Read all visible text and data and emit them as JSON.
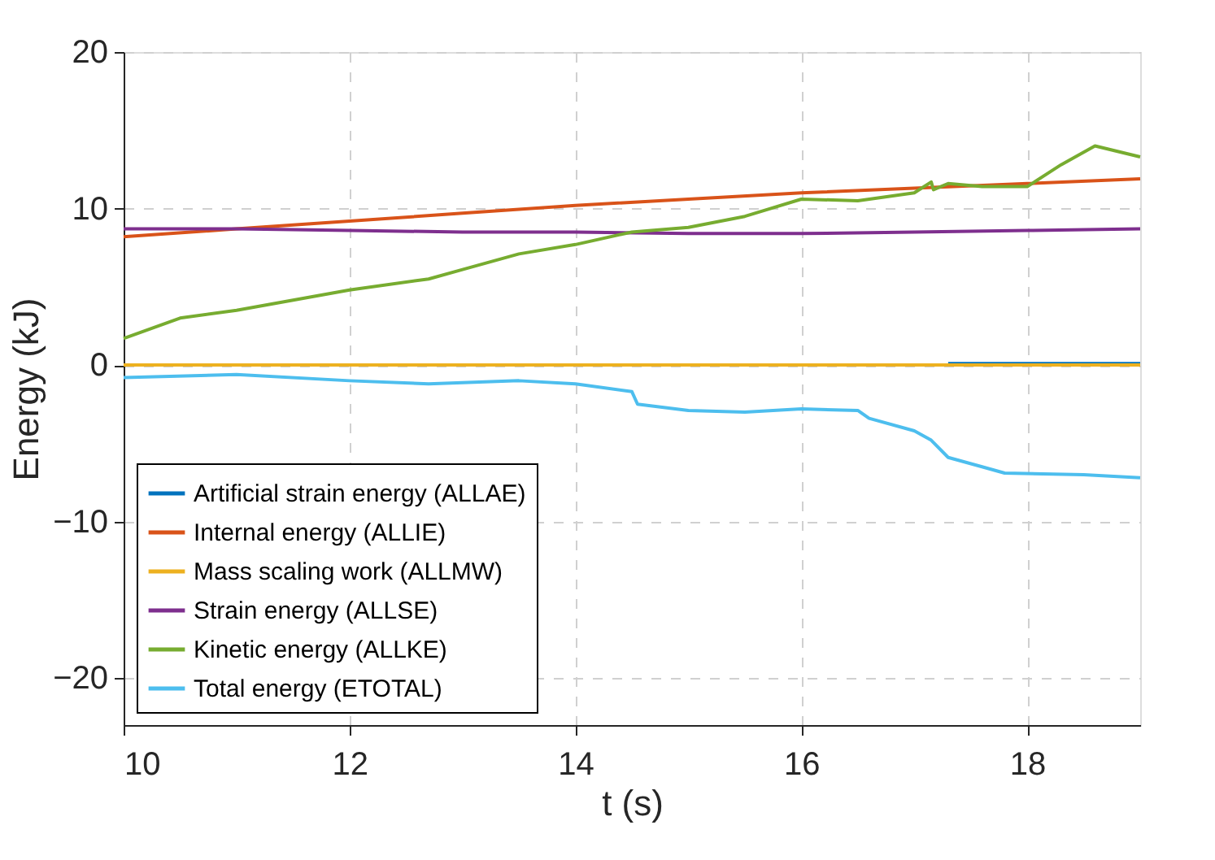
{
  "chart_data": {
    "type": "line",
    "xlabel": "t (s)",
    "ylabel": "Energy (kJ)",
    "xlim": [
      10,
      19
    ],
    "ylim": [
      -23,
      20
    ],
    "xticks": [
      10,
      12,
      14,
      16,
      18
    ],
    "yticks": [
      -20,
      -10,
      0,
      10,
      20
    ],
    "grid": true,
    "legend": "bottom left",
    "line_style": "solid",
    "marker": "none",
    "series": [
      {
        "name": "Artificial strain energy (ALLAE)",
        "color": "#0072bd",
        "x": [
          17.3,
          18,
          19
        ],
        "values": [
          0.1,
          0.1,
          0.1
        ]
      },
      {
        "name": "Internal energy (ALLIE)",
        "color": "#d95319",
        "x": [
          10,
          11,
          12,
          13,
          14,
          15,
          16,
          17,
          18,
          19
        ],
        "values": [
          8.2,
          8.7,
          9.2,
          9.7,
          10.2,
          10.6,
          11.0,
          11.3,
          11.6,
          11.9
        ]
      },
      {
        "name": "Mass scaling work (ALLMW)",
        "color": "#edb120",
        "x": [
          10,
          19
        ],
        "values": [
          0,
          0
        ]
      },
      {
        "name": "Strain energy (ALLSE)",
        "color": "#7e2f8e",
        "x": [
          10,
          11,
          12,
          13,
          14,
          15,
          16,
          17,
          18,
          19
        ],
        "values": [
          8.7,
          8.7,
          8.6,
          8.5,
          8.5,
          8.4,
          8.4,
          8.5,
          8.6,
          8.7
        ]
      },
      {
        "name": "Kinetic energy (ALLKE)",
        "color": "#77ac30",
        "x": [
          10,
          10.5,
          11,
          12,
          12.7,
          13,
          13.5,
          14,
          14.5,
          15,
          15.5,
          16,
          16.5,
          17,
          17.15,
          17.17,
          17.3,
          17.6,
          18,
          18.3,
          18.6,
          19
        ],
        "values": [
          1.7,
          3.0,
          3.5,
          4.8,
          5.5,
          6.1,
          7.1,
          7.7,
          8.5,
          8.8,
          9.5,
          10.6,
          10.5,
          11.0,
          11.7,
          11.2,
          11.6,
          11.4,
          11.4,
          12.8,
          14.0,
          13.3
        ]
      },
      {
        "name": "Total energy (ETOTAL)",
        "color": "#4dbeee",
        "x": [
          10,
          11,
          12,
          12.7,
          13.5,
          14,
          14.5,
          14.55,
          15,
          15.5,
          16,
          16.5,
          16.6,
          17,
          17.15,
          17.3,
          17.6,
          17.8,
          18.5,
          19
        ],
        "values": [
          -0.8,
          -0.6,
          -1.0,
          -1.2,
          -1.0,
          -1.2,
          -1.7,
          -2.5,
          -2.9,
          -3.0,
          -2.8,
          -2.9,
          -3.4,
          -4.2,
          -4.8,
          -5.9,
          -6.5,
          -6.9,
          -7.0,
          -7.2
        ]
      }
    ]
  }
}
